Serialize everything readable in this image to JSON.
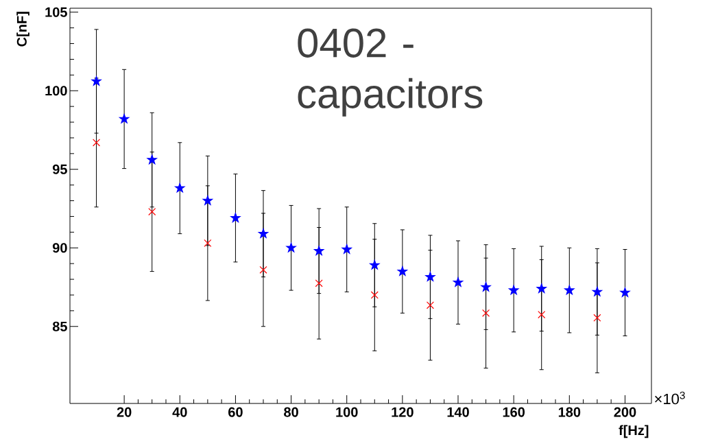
{
  "chart_data": {
    "type": "scatter",
    "xlabel": "f[Hz]",
    "ylabel": "C[nF]",
    "annotations": [
      "0402 - capacitors",
      "×10$^{3}$"
    ],
    "x": [
      10,
      20,
      30,
      40,
      50,
      60,
      70,
      80,
      90,
      100,
      110,
      120,
      130,
      140,
      150,
      160,
      170,
      180,
      190,
      200
    ],
    "series": [
      {
        "color": "#0000ff",
        "marker": "star",
        "values": [
          100.6,
          98.2,
          95.6,
          93.8,
          93.0,
          91.9,
          90.9,
          90.0,
          89.8,
          89.9,
          88.9,
          88.5,
          88.15,
          87.8,
          87.5,
          87.3,
          87.4,
          87.3,
          87.2,
          87.15
        ],
        "errors": [
          3.3,
          3.15,
          3.0,
          2.9,
          2.85,
          2.8,
          2.75,
          2.7,
          2.7,
          2.7,
          2.65,
          2.65,
          2.65,
          2.65,
          2.7,
          2.65,
          2.7,
          2.7,
          2.75,
          2.75
        ]
      },
      {
        "color": "#ff0000",
        "marker": "cross",
        "x": [
          10,
          30,
          50,
          70,
          90,
          110,
          130,
          150,
          170,
          190
        ],
        "values": [
          96.7,
          92.3,
          90.3,
          88.6,
          87.75,
          87.0,
          86.35,
          85.85,
          85.75,
          85.55
        ],
        "errors": [
          4.1,
          3.8,
          3.65,
          3.6,
          3.55,
          3.55,
          3.5,
          3.5,
          3.5,
          3.5
        ]
      }
    ],
    "xlim": [
      0.5,
      209.5
    ],
    "ylim": [
      80.1,
      105.25
    ],
    "xticks": [
      20,
      40,
      60,
      80,
      100,
      120,
      140,
      160,
      180,
      200
    ],
    "yticks": [
      85,
      90,
      95,
      100,
      105
    ]
  }
}
